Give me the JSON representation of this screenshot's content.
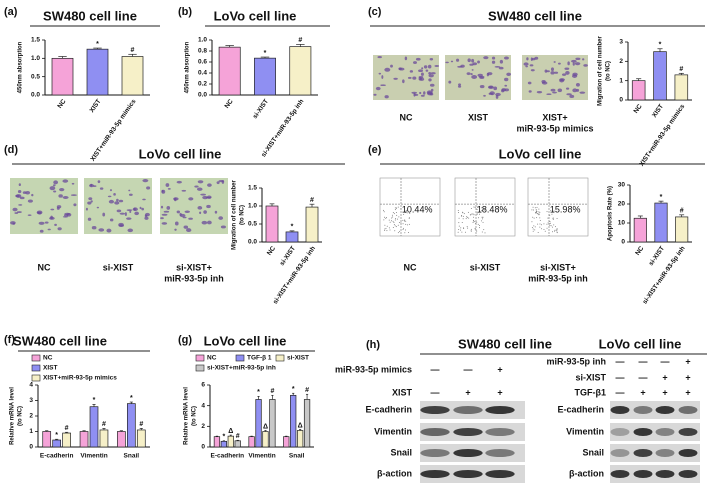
{
  "chart_data": [
    {
      "type": "bar",
      "panel_label": "(a)",
      "title": "SW480 cell line",
      "ylabel": [
        "450nm absorption"
      ],
      "categories": [
        "NC",
        "XIST",
        "XIST+miR-93-5p mimics"
      ],
      "values": [
        1.0,
        1.25,
        1.05
      ],
      "errors": [
        0.05,
        0.03,
        0.06
      ],
      "colors": [
        "#f5a3d8",
        "#8f8ff2",
        "#f6f0c8"
      ],
      "marks": [
        null,
        "*",
        "#"
      ],
      "ylim": [
        0,
        1.5
      ],
      "yticks": [
        {
          "value": 0,
          "label": "0.0"
        },
        {
          "value": 0.5,
          "label": "0.5"
        },
        {
          "value": 1,
          "label": "1.0"
        },
        {
          "value": 1.5,
          "label": "1.5"
        }
      ]
    },
    {
      "type": "bar",
      "panel_label": "(b)",
      "title": "LoVo cell line",
      "ylabel": [
        "450nm absorption"
      ],
      "categories": [
        "NC",
        "si-XIST",
        "si-XIST+miR-93-5p inh"
      ],
      "values": [
        0.87,
        0.67,
        0.88
      ],
      "errors": [
        0.03,
        0.02,
        0.04
      ],
      "colors": [
        "#f5a3d8",
        "#8f8ff2",
        "#f6f0c8"
      ],
      "marks": [
        null,
        "*",
        "#"
      ],
      "ylim": [
        0,
        1.0
      ],
      "yticks": [
        {
          "value": 0,
          "label": "0.0"
        },
        {
          "value": 0.2,
          "label": "0.2"
        },
        {
          "value": 0.4,
          "label": "0.4"
        },
        {
          "value": 0.6,
          "label": "0.6"
        },
        {
          "value": 0.8,
          "label": "0.8"
        },
        {
          "value": 1,
          "label": "1.0"
        }
      ]
    },
    {
      "type": "bar",
      "panel_label": "(c)",
      "title": "SW480 cell line",
      "image_labels": [
        [
          "NC"
        ],
        [
          "XIST"
        ],
        [
          "XIST+",
          "miR-93-5p mimics"
        ]
      ],
      "ylabel": [
        "Migration of cell number",
        "(to NC)"
      ],
      "categories": [
        "NC",
        "XIST",
        "XIST+miR-93-5p mimics"
      ],
      "values": [
        1.0,
        2.5,
        1.3
      ],
      "errors": [
        0.1,
        0.15,
        0.08
      ],
      "colors": [
        "#f5a3d8",
        "#8f8ff2",
        "#f6f0c8"
      ],
      "marks": [
        null,
        "*",
        "#"
      ],
      "ylim": [
        0,
        3
      ],
      "yticks": [
        0,
        1,
        2,
        3
      ]
    },
    {
      "type": "bar",
      "panel_label": "(d)",
      "title": "LoVo cell line",
      "image_labels": [
        [
          "NC"
        ],
        [
          "si-XIST"
        ],
        [
          "si-XIST+",
          "miR-93-5p inh"
        ]
      ],
      "ylabel": [
        "Migration of cell number",
        "(to NC)"
      ],
      "categories": [
        "NC",
        "si-XIST",
        "si-XIST+miR-93-5p inh"
      ],
      "values": [
        1.0,
        0.28,
        0.97
      ],
      "errors": [
        0.06,
        0.03,
        0.08
      ],
      "colors": [
        "#f5a3d8",
        "#8f8ff2",
        "#f6f0c8"
      ],
      "marks": [
        null,
        "*",
        "#"
      ],
      "ylim": [
        0,
        1.5
      ],
      "yticks": [
        {
          "value": 0,
          "label": "0.0"
        },
        {
          "value": 0.5,
          "label": "0.5"
        },
        {
          "value": 1,
          "label": "1.0"
        },
        {
          "value": 1.5,
          "label": "1.5"
        }
      ]
    },
    {
      "type": "bar",
      "panel_label": "(e)",
      "title": "LoVo cell line",
      "image_labels": [
        [
          "NC"
        ],
        [
          "si-XIST"
        ],
        [
          "si-XIST+",
          "miR-93-5p inh"
        ]
      ],
      "flow_labels": [
        "10.44%",
        "18.48%",
        "15.98%"
      ],
      "ylabel": [
        "Apoptosis Rate (%)"
      ],
      "categories": [
        "NC",
        "si-XIST",
        "si-XIST+miR-93-5p inh"
      ],
      "values": [
        12.5,
        20.5,
        13.2
      ],
      "errors": [
        1.2,
        1.0,
        1.1
      ],
      "colors": [
        "#f5a3d8",
        "#8f8ff2",
        "#f6f0c8"
      ],
      "marks": [
        null,
        "*",
        "#"
      ],
      "ylim": [
        0,
        30
      ],
      "yticks": [
        0,
        10,
        20,
        30
      ]
    },
    {
      "type": "grouped_bar",
      "panel_label": "(f)",
      "title": "SW480 cell line",
      "ylabel": [
        "Relative mRNA level",
        "(to NC)"
      ],
      "categories": [
        "E-cadherin",
        "Vimentin",
        "Snail"
      ],
      "series": [
        {
          "name": "NC",
          "color": "#f5a3d8",
          "values": [
            1.0,
            1.0,
            1.0
          ],
          "errors": [
            0.05,
            0.05,
            0.05
          ],
          "marks": [
            null,
            null,
            null
          ]
        },
        {
          "name": "XIST",
          "color": "#8f8ff2",
          "values": [
            0.45,
            2.6,
            2.8
          ],
          "errors": [
            0.05,
            0.15,
            0.1
          ],
          "marks": [
            "*",
            "*",
            "*"
          ]
        },
        {
          "name": "XIST+miR-93-5p mimics",
          "color": "#f6f0c8",
          "values": [
            0.9,
            1.1,
            1.1
          ],
          "errors": [
            0.05,
            0.1,
            0.1
          ],
          "marks": [
            "#",
            "#",
            "#"
          ]
        }
      ],
      "ylim": [
        0,
        4
      ],
      "yticks": [
        0,
        1,
        2,
        3,
        4
      ]
    },
    {
      "type": "grouped_bar",
      "panel_label": "(g)",
      "title": "LoVo cell line",
      "ylabel": [
        "Relative mRNA level",
        "(to NC)"
      ],
      "categories": [
        "E-cadherin",
        "Vimentin",
        "Snail"
      ],
      "series": [
        {
          "name": "NC",
          "color": "#f5a3d8",
          "values": [
            1.0,
            1.0,
            1.0
          ],
          "errors": [
            0.05,
            0.05,
            0.05
          ],
          "marks": [
            null,
            null,
            null
          ]
        },
        {
          "name": "TGF-β 1",
          "color": "#8f8ff2",
          "values": [
            0.55,
            4.6,
            5.0
          ],
          "errors": [
            0.05,
            0.3,
            0.2
          ],
          "marks": [
            "*",
            "*",
            "*"
          ]
        },
        {
          "name": "si-XIST",
          "color": "#f6f0c8",
          "values": [
            1.05,
            1.5,
            1.6
          ],
          "errors": [
            0.1,
            0.1,
            0.1
          ],
          "marks": [
            "Δ",
            "Δ",
            "Δ"
          ]
        },
        {
          "name": "si-XIST+miR-93-5p inh",
          "color": "#c8c8c8",
          "values": [
            0.6,
            4.6,
            4.6
          ],
          "errors": [
            0.05,
            0.4,
            0.5
          ],
          "marks": [
            "#",
            "#",
            "#"
          ]
        }
      ],
      "ylim": [
        0,
        6
      ],
      "yticks": [
        0,
        2,
        4,
        6
      ]
    }
  ],
  "blots": [
    {
      "panel_label": "(h)",
      "title": "SW480 cell line",
      "conditions": [
        {
          "label": "miR-93-5p mimics",
          "signs": [
            "—",
            "—",
            "+"
          ]
        },
        {
          "label": "XIST",
          "signs": [
            "—",
            "+",
            "+"
          ]
        }
      ],
      "bands": [
        "E-cadherin",
        "Vimentin",
        "Snail",
        "β-action"
      ]
    },
    {
      "title": "LoVo cell line",
      "conditions": [
        {
          "label": "miR-93-5p  inh",
          "signs": [
            "—",
            "—",
            "—",
            "+"
          ]
        },
        {
          "label": "si-XIST",
          "signs": [
            "—",
            "—",
            "+",
            "+"
          ]
        },
        {
          "label": "TGF-β1",
          "signs": [
            "—",
            "+",
            "+",
            "+"
          ]
        }
      ],
      "bands": [
        "E-cadherin",
        "Vimentin",
        "Snail",
        "β-action"
      ]
    }
  ]
}
